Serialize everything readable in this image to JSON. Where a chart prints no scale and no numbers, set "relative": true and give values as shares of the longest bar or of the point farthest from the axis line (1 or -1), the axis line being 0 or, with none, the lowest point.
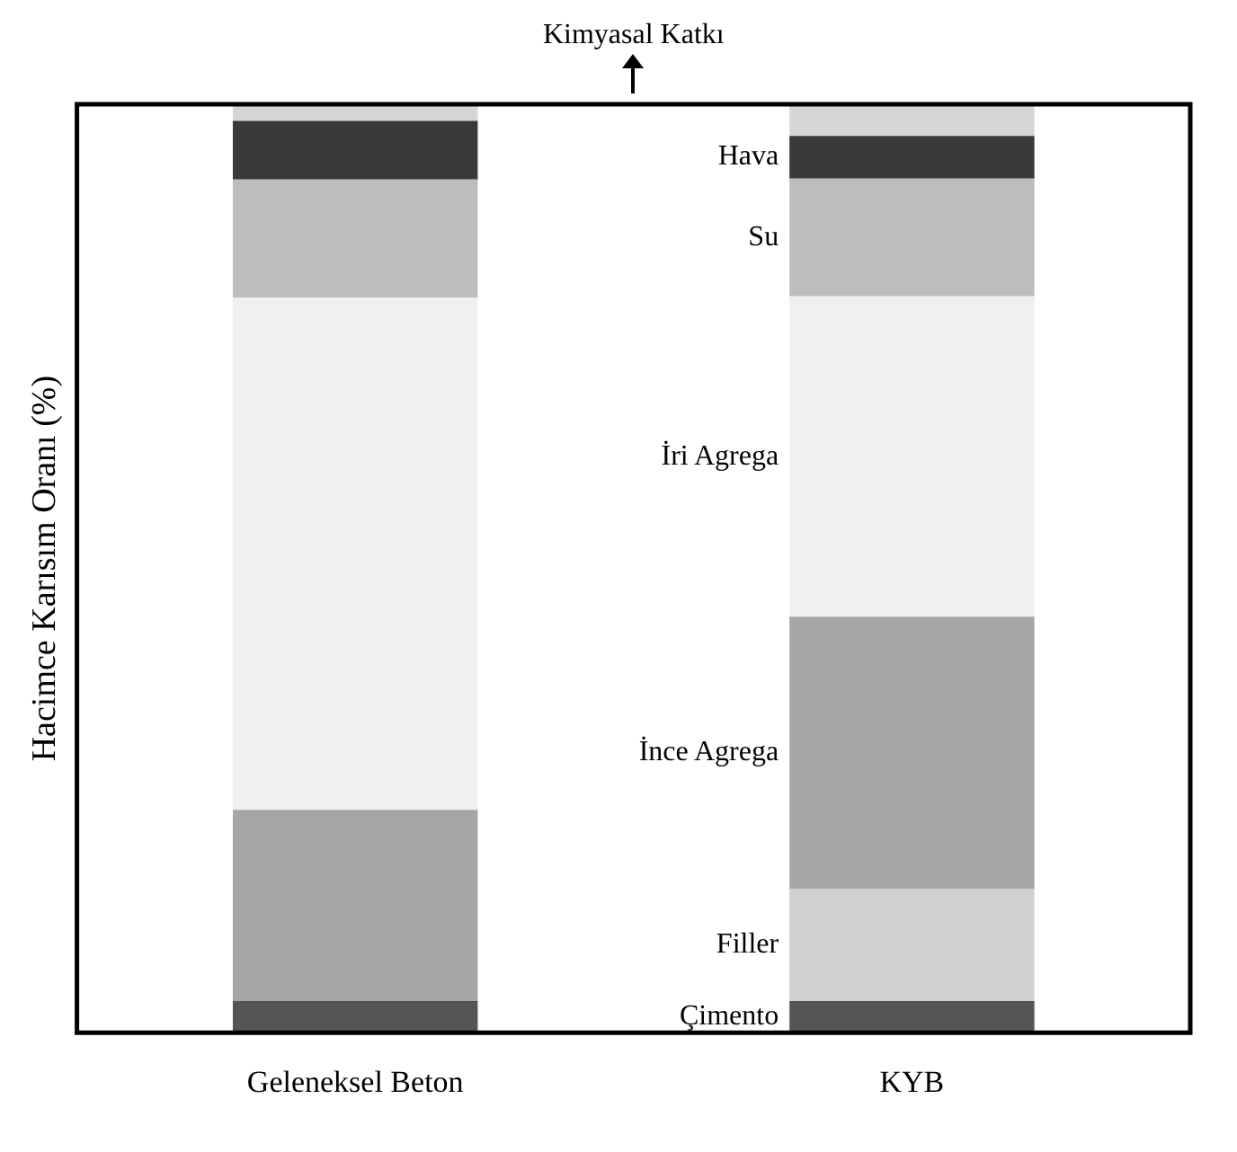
{
  "chart_data": {
    "type": "bar",
    "stacked": true,
    "relative": true,
    "legend": false,
    "ylabel": "Hacimce Karısım Oranı (%)",
    "categories": [
      "Geleneksel Beton",
      "KYB"
    ],
    "series": [
      {
        "name": "Çimento",
        "color": "#555555",
        "values": [
          0.034,
          0.034
        ]
      },
      {
        "name": "Filler",
        "color": "#d0d0d0",
        "values": [
          0,
          0.121
        ]
      },
      {
        "name": "İnce Agrega",
        "color": "#a6a6a6",
        "values": [
          0.206,
          0.293
        ]
      },
      {
        "name": "İri Agrega",
        "color": "#f0f0f0",
        "values": [
          0.552,
          0.345
        ]
      },
      {
        "name": "Su",
        "color": "#bdbdbd",
        "values": [
          0.127,
          0.127
        ]
      },
      {
        "name": "Hava",
        "color": "#3a3a3a",
        "values": [
          0.063,
          0.046
        ]
      },
      {
        "name": "Kimyasal Katkı",
        "color": "#d6d6d6",
        "values": [
          0.018,
          0.034
        ]
      }
    ]
  }
}
